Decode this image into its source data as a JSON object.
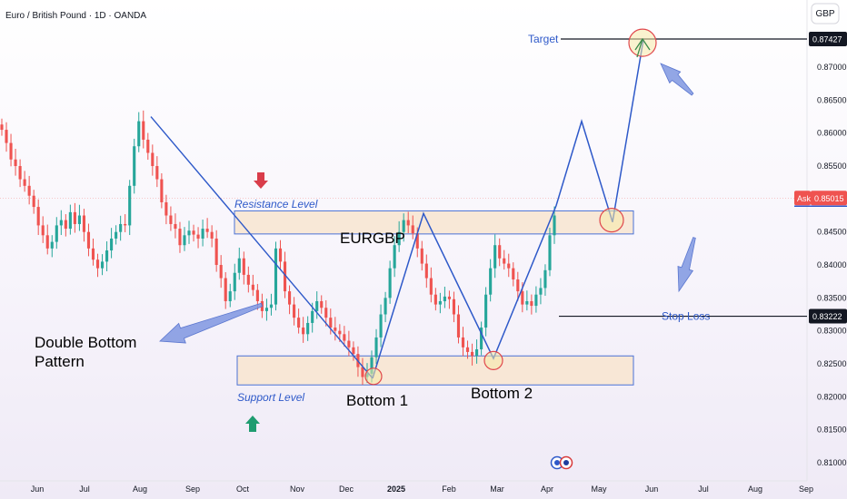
{
  "header": {
    "title": "Euro / British Pound · 1D · OANDA",
    "currency": "GBP"
  },
  "price_badges": {
    "target_value": "0.87427",
    "ask_label": "Ask",
    "ask_value": "0.85015",
    "stop_value": "0.83222"
  },
  "annotations": {
    "target": "Target",
    "stop_loss": "Stop Loss",
    "resistance": "Resistance Level",
    "support": "Support Level",
    "symbol": "EURGBP",
    "bottom1": "Bottom 1",
    "bottom2": "Bottom 2",
    "pattern_line1": "Double Bottom",
    "pattern_line2": "Pattern"
  },
  "colors": {
    "up": "#26a69a",
    "down": "#ef5350",
    "drawing": "#2e59c9",
    "zone_fill": "#f8e5d0",
    "zone_border": "#4a72d6",
    "circle": "#e0474c",
    "ask_badge": "#ef5350",
    "level_badge": "#131722"
  },
  "chart_data": {
    "type": "candlestick",
    "instrument": "EURGBP",
    "timeframe": "1D",
    "ylim": [
      0.806,
      0.8775
    ],
    "y_ticks": [
      "0.87000",
      "0.86500",
      "0.86000",
      "0.85500",
      "0.85000",
      "0.84500",
      "0.84000",
      "0.83500",
      "0.83000",
      "0.82500",
      "0.82000",
      "0.81500",
      "0.81000"
    ],
    "x_ticks": [
      "Jun",
      "Jul",
      "Aug",
      "Sep",
      "Oct",
      "Nov",
      "Dec",
      "2025",
      "Feb",
      "Mar",
      "Apr",
      "May",
      "Jun",
      "Jul",
      "Aug",
      "Sep"
    ],
    "close_path": [
      0.8605,
      0.8585,
      0.856,
      0.855,
      0.853,
      0.852,
      0.8505,
      0.8488,
      0.846,
      0.8445,
      0.8425,
      0.8435,
      0.846,
      0.8468,
      0.8455,
      0.848,
      0.8462,
      0.8475,
      0.845,
      0.8425,
      0.8408,
      0.8395,
      0.8405,
      0.8422,
      0.844,
      0.845,
      0.8462,
      0.846,
      0.852,
      0.858,
      0.8618,
      0.859,
      0.857,
      0.855,
      0.853,
      0.8495,
      0.8475,
      0.8462,
      0.8455,
      0.843,
      0.8445,
      0.8452,
      0.8446,
      0.844,
      0.8455,
      0.845,
      0.844,
      0.84,
      0.838,
      0.8345,
      0.836,
      0.8388,
      0.841,
      0.8385,
      0.837,
      0.8362,
      0.8345,
      0.833,
      0.8335,
      0.834,
      0.8425,
      0.8405,
      0.836,
      0.834,
      0.832,
      0.8305,
      0.8295,
      0.8312,
      0.833,
      0.8345,
      0.8335,
      0.832,
      0.8305,
      0.83,
      0.8295,
      0.8285,
      0.8275,
      0.8265,
      0.8245,
      0.823,
      0.8235,
      0.826,
      0.829,
      0.8325,
      0.835,
      0.8395,
      0.843,
      0.845,
      0.8468,
      0.846,
      0.8448,
      0.8425,
      0.8402,
      0.838,
      0.8355,
      0.834,
      0.8345,
      0.8352,
      0.8348,
      0.8325,
      0.829,
      0.8275,
      0.8268,
      0.8262,
      0.8272,
      0.8305,
      0.8355,
      0.8395,
      0.843,
      0.841,
      0.8402,
      0.8395,
      0.8378,
      0.836,
      0.834,
      0.8345,
      0.8338,
      0.8355,
      0.8365,
      0.8392,
      0.8445,
      0.8475
    ],
    "date_range_label_positions_note": "",
    "levels": {
      "target": 0.87427,
      "ask": 0.85015,
      "stop_loss": 0.83222
    },
    "zones": [
      {
        "name": "Resistance Level",
        "low": 0.8447,
        "high": 0.8482
      },
      {
        "name": "Support Level",
        "low": 0.8218,
        "high": 0.8262
      }
    ],
    "bottoms": [
      {
        "name": "Bottom 1",
        "month": "Dec",
        "price": 0.823
      },
      {
        "name": "Bottom 2",
        "month": "Mar",
        "price": 0.8255
      }
    ],
    "projection": [
      0.8475,
      0.8618,
      0.8465,
      0.8742
    ],
    "grid": false,
    "legend": "none"
  }
}
